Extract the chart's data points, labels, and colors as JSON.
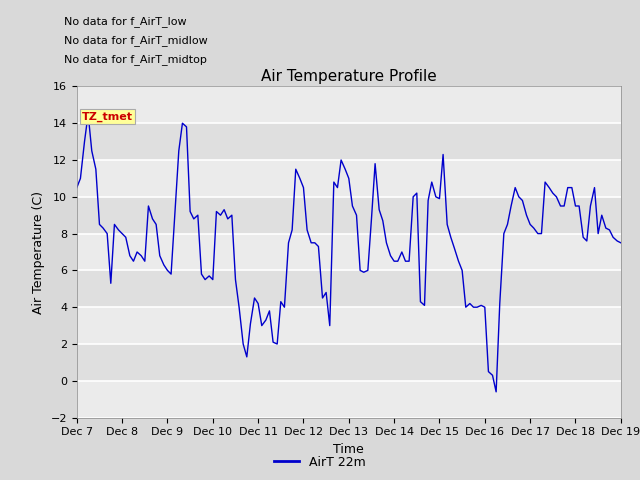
{
  "title": "Air Temperature Profile",
  "xlabel": "Time",
  "ylabel": "Air Temperature (C)",
  "ylim": [
    -2,
    16
  ],
  "yticks": [
    -2,
    0,
    2,
    4,
    6,
    8,
    10,
    12,
    14,
    16
  ],
  "xtick_labels": [
    "Dec 7",
    "Dec 8",
    "Dec 9",
    "Dec 10",
    "Dec 11",
    "Dec 12",
    "Dec 13",
    "Dec 14",
    "Dec 15",
    "Dec 16",
    "Dec 17",
    "Dec 18",
    "Dec 19"
  ],
  "line_color": "#0000cc",
  "line_label": "AirT 22m",
  "legend_texts": [
    "No data for f_AirT_low",
    "No data for f_AirT_midlow",
    "No data for f_AirT_midtop"
  ],
  "annotation_text": "TZ_tmet",
  "annotation_color": "#cc0000",
  "annotation_bg": "#ffff99",
  "fig_bg": "#d9d9d9",
  "plot_bg": "#ebebeb",
  "grid_color": "#ffffff",
  "title_fontsize": 11,
  "axis_fontsize": 9,
  "tick_fontsize": 8,
  "x_values": [
    0.0,
    0.08,
    0.17,
    0.25,
    0.33,
    0.42,
    0.5,
    0.58,
    0.67,
    0.75,
    0.83,
    0.92,
    1.0,
    1.08,
    1.17,
    1.25,
    1.33,
    1.42,
    1.5,
    1.58,
    1.67,
    1.75,
    1.83,
    1.92,
    2.0,
    2.08,
    2.17,
    2.25,
    2.33,
    2.42,
    2.5,
    2.58,
    2.67,
    2.75,
    2.83,
    2.92,
    3.0,
    3.08,
    3.17,
    3.25,
    3.33,
    3.42,
    3.5,
    3.58,
    3.67,
    3.75,
    3.83,
    3.92,
    4.0,
    4.08,
    4.17,
    4.25,
    4.33,
    4.42,
    4.5,
    4.58,
    4.67,
    4.75,
    4.83,
    4.92,
    5.0,
    5.08,
    5.17,
    5.25,
    5.33,
    5.42,
    5.5,
    5.58,
    5.67,
    5.75,
    5.83,
    5.92,
    6.0,
    6.08,
    6.17,
    6.25,
    6.33,
    6.42,
    6.5,
    6.58,
    6.67,
    6.75,
    6.83,
    6.92,
    7.0,
    7.08,
    7.17,
    7.25,
    7.33,
    7.42,
    7.5,
    7.58,
    7.67,
    7.75,
    7.83,
    7.92,
    8.0,
    8.08,
    8.17,
    8.25,
    8.33,
    8.42,
    8.5,
    8.58,
    8.67,
    8.75,
    8.83,
    8.92,
    9.0,
    9.08,
    9.17,
    9.25,
    9.33,
    9.42,
    9.5,
    9.58,
    9.67,
    9.75,
    9.83,
    9.92,
    10.0,
    10.08,
    10.17,
    10.25,
    10.33,
    10.42,
    10.5,
    10.58,
    10.67,
    10.75,
    10.83,
    10.92,
    11.0,
    11.08,
    11.17,
    11.25,
    11.33,
    11.42,
    11.5,
    11.58,
    11.67,
    11.75,
    11.83,
    11.92,
    12.0
  ],
  "y_values": [
    10.5,
    11.0,
    13.0,
    14.5,
    12.5,
    11.5,
    8.5,
    8.3,
    8.0,
    5.3,
    8.5,
    8.2,
    8.0,
    7.8,
    6.8,
    6.5,
    7.0,
    6.8,
    6.5,
    9.5,
    8.8,
    8.5,
    6.8,
    6.3,
    6.0,
    5.8,
    9.3,
    12.5,
    14.0,
    13.8,
    9.2,
    8.8,
    9.0,
    5.8,
    5.5,
    5.7,
    5.5,
    9.2,
    9.0,
    9.3,
    8.8,
    9.0,
    5.5,
    4.0,
    2.0,
    1.3,
    3.1,
    4.5,
    4.2,
    3.0,
    3.3,
    3.8,
    2.1,
    2.0,
    4.3,
    4.0,
    7.5,
    8.2,
    11.5,
    11.0,
    10.5,
    8.2,
    7.5,
    7.5,
    7.3,
    4.5,
    4.8,
    3.0,
    10.8,
    10.5,
    12.0,
    11.5,
    11.0,
    9.5,
    9.0,
    6.0,
    5.9,
    6.0,
    8.8,
    11.8,
    9.3,
    8.7,
    7.5,
    6.8,
    6.5,
    6.5,
    7.0,
    6.5,
    6.5,
    10.0,
    10.2,
    4.3,
    4.1,
    9.8,
    10.8,
    10.0,
    9.9,
    12.3,
    8.5,
    7.8,
    7.2,
    6.5,
    6.0,
    4.0,
    4.2,
    4.0,
    4.0,
    4.1,
    4.0,
    0.5,
    0.3,
    -0.6,
    4.2,
    8.0,
    8.5,
    9.5,
    10.5,
    10.0,
    9.8,
    9.0,
    8.5,
    8.3,
    8.0,
    8.0,
    10.8,
    10.5,
    10.2,
    10.0,
    9.5,
    9.5,
    10.5,
    10.5,
    9.5,
    9.5,
    7.8,
    7.6,
    9.5,
    10.5,
    8.0,
    9.0,
    8.3,
    8.2,
    7.8,
    7.6,
    7.5
  ]
}
